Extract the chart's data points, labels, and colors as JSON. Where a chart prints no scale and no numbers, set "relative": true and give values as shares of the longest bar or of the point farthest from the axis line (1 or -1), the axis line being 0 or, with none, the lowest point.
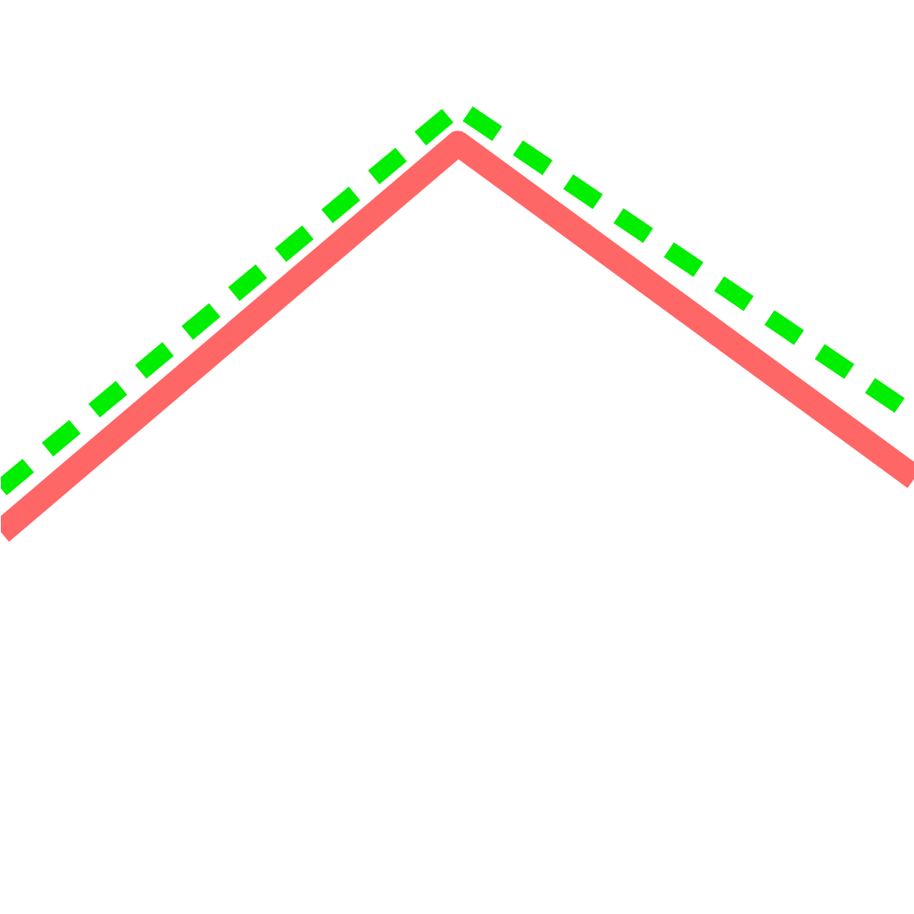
{
  "chart_data": {
    "type": "line",
    "relative": true,
    "categories": [
      null,
      null,
      null
    ],
    "series": [
      {
        "color": "#ff6666",
        "values": [
          0,
          0.915,
          0.128
        ],
        "line_style": "solid"
      },
      {
        "color": "#00ee00",
        "values": [
          0.103,
          1,
          0.274
        ],
        "line_style": "dashed"
      }
    ],
    "grid": false,
    "marker": "none"
  }
}
